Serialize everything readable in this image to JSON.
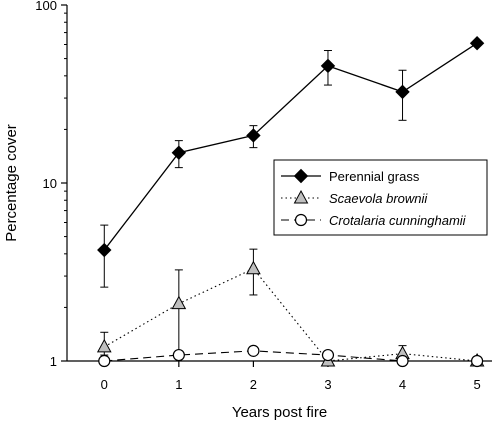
{
  "chart_data": {
    "type": "line",
    "xlabel": "Years post fire",
    "ylabel": "Percentage cover",
    "y_scale": "log",
    "ylim": [
      1,
      100
    ],
    "xlim": [
      -0.5,
      5.2
    ],
    "x_ticks": [
      0,
      1,
      2,
      3,
      4,
      5
    ],
    "y_ticks": [
      1,
      10,
      100
    ],
    "x_tick_labels": [
      "0",
      "1",
      "2",
      "3",
      "4",
      "5"
    ],
    "y_tick_labels": [
      "1",
      "10",
      "100"
    ],
    "legend_position": "right",
    "series": [
      {
        "name": "Perennial grass",
        "italic": false,
        "marker": "filled-diamond",
        "line_style": "solid",
        "color": "#000000",
        "x": [
          0,
          1,
          2,
          3,
          4,
          5
        ],
        "y": [
          4.2,
          14.8,
          18.5,
          45.5,
          32.5,
          61
        ],
        "err_low": [
          2.6,
          12.2,
          15.8,
          35.5,
          22.5,
          null
        ],
        "err_high": [
          5.8,
          17.3,
          21.0,
          55.5,
          43.0,
          null
        ]
      },
      {
        "name": "Scaevola brownii",
        "italic": true,
        "marker": "open-triangle",
        "line_style": "dotted",
        "color": "#000000",
        "fill": "#bfbfbf",
        "x": [
          0,
          1,
          2,
          3,
          4,
          5
        ],
        "y": [
          1.2,
          2.1,
          3.3,
          1.0,
          1.1,
          1.0
        ],
        "err_low": [
          1.08,
          1.0,
          2.35,
          null,
          1.0,
          null
        ],
        "err_high": [
          1.45,
          3.25,
          4.25,
          null,
          1.22,
          null
        ]
      },
      {
        "name": "Crotalaria cunninghamii",
        "italic": true,
        "marker": "open-circle",
        "line_style": "dashed",
        "color": "#000000",
        "x": [
          0,
          1,
          2,
          3,
          4,
          5
        ],
        "y": [
          1.0,
          1.08,
          1.14,
          1.08,
          1.0,
          1.0
        ],
        "err_low": [
          null,
          null,
          null,
          null,
          null,
          null
        ],
        "err_high": [
          null,
          null,
          null,
          null,
          null,
          null
        ]
      }
    ]
  }
}
